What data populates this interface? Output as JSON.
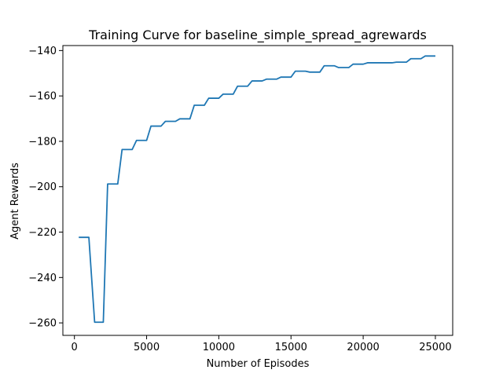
{
  "chart_data": {
    "type": "line",
    "title": "Training Curve for baseline_simple_spread_agrewards",
    "xlabel": "Number of Episodes",
    "ylabel": "Agent Rewards",
    "xlim": [
      -800,
      26200
    ],
    "ylim": [
      -265.5,
      -137.8
    ],
    "xticks": [
      0,
      5000,
      10000,
      15000,
      20000,
      25000
    ],
    "yticks": [
      -140,
      -160,
      -180,
      -200,
      -220,
      -240,
      -260
    ],
    "grid": false,
    "legend": "none",
    "series": [
      {
        "color": "#1f77b4",
        "x": [
          300,
          1000,
          1400,
          2000,
          2300,
          3000,
          3300,
          4000,
          4300,
          5000,
          5300,
          6000,
          6300,
          7000,
          7300,
          8000,
          8300,
          9000,
          9300,
          10000,
          10300,
          11000,
          11300,
          12000,
          12300,
          13000,
          13300,
          14000,
          14300,
          15000,
          15300,
          16000,
          16300,
          17000,
          17300,
          18000,
          18300,
          19000,
          19300,
          20000,
          20300,
          21000,
          21300,
          22000,
          22300,
          23000,
          23300,
          24000,
          24300,
          25000
        ],
        "y": [
          -222.3,
          -222.3,
          -259.7,
          -259.7,
          -198.8,
          -198.8,
          -183.6,
          -183.6,
          -179.6,
          -179.6,
          -173.3,
          -173.3,
          -171.2,
          -171.2,
          -170.1,
          -170.1,
          -164.1,
          -164.1,
          -161.0,
          -161.0,
          -159.2,
          -159.2,
          -155.7,
          -155.7,
          -153.4,
          -153.4,
          -152.6,
          -152.6,
          -151.7,
          -151.7,
          -149.1,
          -149.1,
          -149.5,
          -149.5,
          -146.7,
          -146.7,
          -147.5,
          -147.5,
          -146.0,
          -146.0,
          -145.4,
          -145.4,
          -145.4,
          -145.4,
          -145.1,
          -145.1,
          -143.6,
          -143.6,
          -142.4,
          -142.4
        ]
      }
    ]
  }
}
